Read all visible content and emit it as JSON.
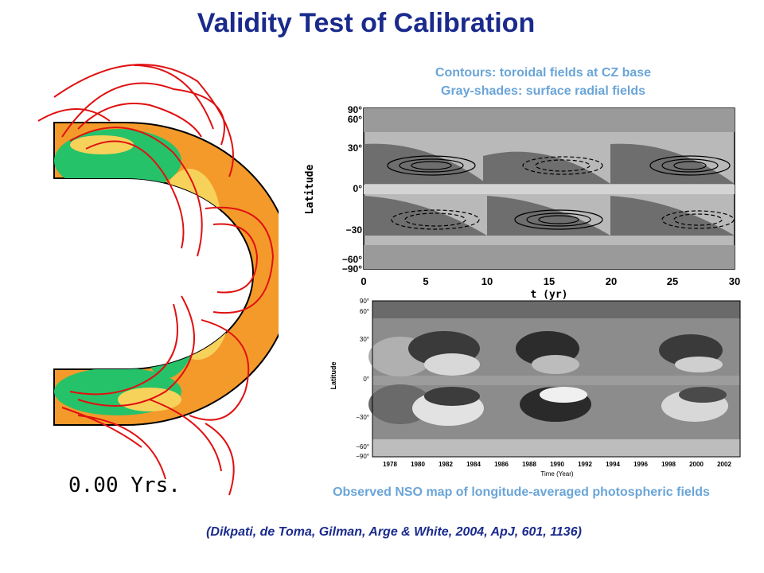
{
  "slide": {
    "title": "Validity Test of Calibration",
    "caption_top_line1": "Contours: toroidal fields at CZ base",
    "caption_top_line2": "Gray-shades: surface radial fields",
    "caption_bottom": "Observed NSO map of longitude-averaged photospheric fields",
    "citation": "(Dikpati, de Toma, Gilman, Arge & White, 2004, ApJ, 601, 1136)"
  },
  "sim_panel": {
    "time_label": "0.00 Yrs."
  },
  "butterfly_sim": {
    "ylabel": "Latitude",
    "xlabel": "t (yr)",
    "y_ticks": [
      "90°",
      "60°",
      "30°",
      "0°",
      "−30",
      "−60°",
      "−90°"
    ],
    "x_ticks": [
      "0",
      "5",
      "10",
      "15",
      "20",
      "25",
      "30"
    ]
  },
  "butterfly_obs": {
    "ylabel": "Latitude",
    "xlabel": "Time (Year)",
    "y_ticks": [
      "90°",
      "60°",
      "30°",
      "0°",
      "−30°",
      "−60°",
      "−90°"
    ],
    "x_ticks": [
      "1978",
      "1980",
      "1982",
      "1984",
      "1986",
      "1988",
      "1990",
      "1992",
      "1994",
      "1996",
      "1998",
      "2000",
      "2002"
    ]
  },
  "colors": {
    "title": "#1a2a8c",
    "caption": "#6aa5d8",
    "field_lines": "#e01010",
    "sim_green": "#26c26a",
    "sim_yellow": "#f7d25a",
    "sim_orange": "#f39a2b",
    "sim_blue": "#2a3fd8"
  }
}
